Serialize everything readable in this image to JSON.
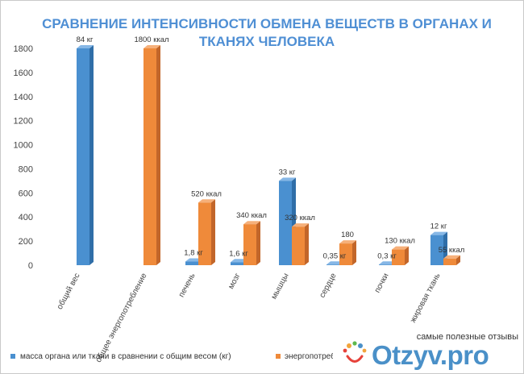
{
  "chart_data": {
    "type": "bar",
    "title_lines": [
      "СРАВНЕНИЕ ИНТЕНСИВНОСТИ ОБМЕНА ВЕЩЕСТВ В ОРГАНАХ И",
      "ТКАНЯХ ЧЕЛОВЕКА"
    ],
    "categories": [
      "общий вес",
      "общее энергопотребление",
      "печень",
      "мозг",
      "мышцы",
      "сердце",
      "почки",
      "жировая ткань"
    ],
    "series": [
      {
        "name": "масса органа или ткани в сравнении с общим весом (кг)",
        "color": "#4a90d0",
        "values": [
          1800,
          null,
          30,
          25,
          700,
          5,
          5,
          250
        ],
        "labels": [
          "84 кг",
          "",
          "1,8 кг",
          "1,6 кг",
          "33 кг",
          "0,35 кг",
          "0,3 кг",
          "12 кг"
        ]
      },
      {
        "name": "энергопотребл...",
        "color": "#ef8a3a",
        "values": [
          null,
          1800,
          520,
          340,
          320,
          180,
          130,
          55
        ],
        "labels": [
          "",
          "1800 ккал",
          "520 ккал",
          "340 ккал",
          "320 ккал",
          "180",
          "130 ккал",
          "55 ккал"
        ]
      }
    ],
    "y_ticks": [
      "0",
      "200",
      "400",
      "600",
      "800",
      "1000",
      "1200",
      "1400",
      "1600",
      "1800"
    ],
    "ylim": [
      0,
      1800
    ],
    "grid": false,
    "legend_position": "bottom"
  },
  "watermark": {
    "caption": "самые полезные отзывы",
    "brand": "Otzyv.pro"
  }
}
